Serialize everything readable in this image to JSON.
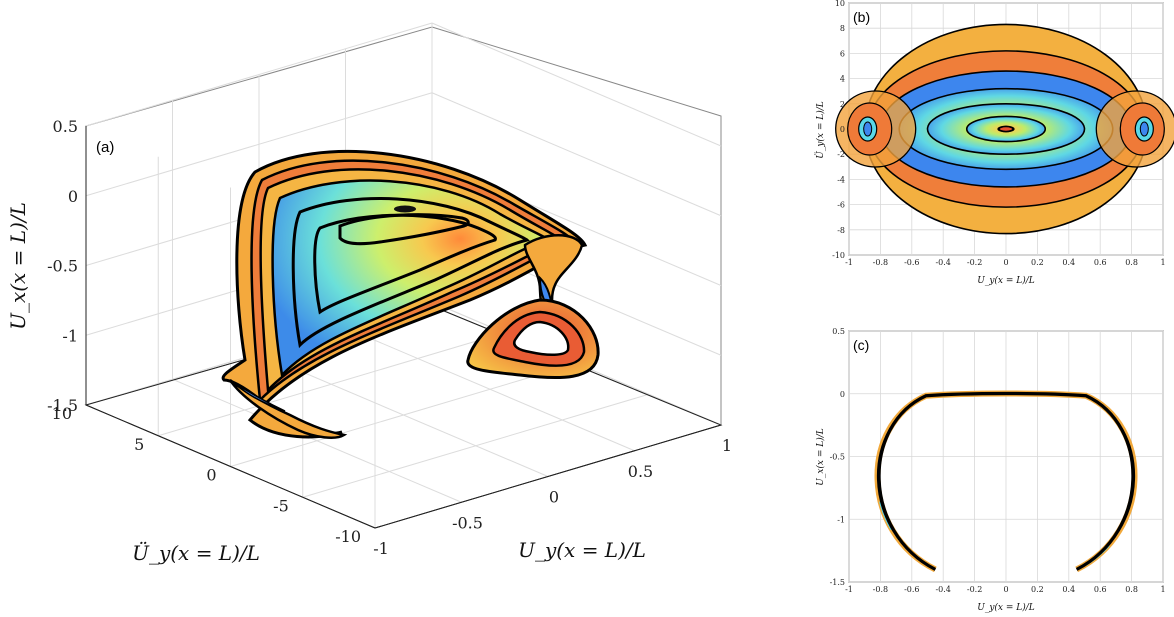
{
  "chart_data": [
    {
      "panel_label": "(a)",
      "type": "3d-surface-contour",
      "xlabel": "U_y(x = L)/L",
      "ylabel": "Ü_y(x = L)/L",
      "zlabel": "U_x(x = L)/L",
      "x_ticks": [
        "-1",
        "-0.5",
        "0",
        "0.5",
        "1"
      ],
      "y_ticks": [
        "-10",
        "-5",
        "0",
        "5",
        "10"
      ],
      "z_ticks": [
        "0.5",
        "0",
        "-0.5",
        "-1",
        "-1.5"
      ],
      "xlim": [
        -1,
        1
      ],
      "ylim": [
        -10,
        10
      ],
      "zlim": [
        -1.5,
        0.5
      ],
      "grid": true
    },
    {
      "panel_label": "(b)",
      "type": "contour",
      "xlabel": "U_y(x = L)/L",
      "ylabel": "Ü_y(x = L)/L",
      "x_ticks": [
        "-1",
        "-0.8",
        "-0.6",
        "-0.4",
        "-0.2",
        "0",
        "0.2",
        "0.4",
        "0.6",
        "0.8",
        "1"
      ],
      "y_ticks": [
        "10",
        "8",
        "6",
        "4",
        "2",
        "0",
        "-2",
        "-4",
        "-6",
        "-8",
        "-10"
      ],
      "xlim": [
        -1,
        1
      ],
      "ylim": [
        -10,
        10
      ],
      "orbits": [
        {
          "cx": 0,
          "cy": 0,
          "rx": 0.05,
          "ry": 0.2
        },
        {
          "cx": 0,
          "cy": 0,
          "rx": 0.25,
          "ry": 1.0
        },
        {
          "cx": 0,
          "cy": 0,
          "rx": 0.5,
          "ry": 2.0
        },
        {
          "cx": 0,
          "cy": 0,
          "rx": 0.68,
          "ry": 3.2
        },
        {
          "cx": 0,
          "cy": 0,
          "rx": 0.8,
          "ry": 4.6
        },
        {
          "cx": 0,
          "cy": 0,
          "rx": 0.88,
          "ry": 6.2
        },
        {
          "cx": 0,
          "cy": 0,
          "rx": 0.9,
          "ry": 8.3
        }
      ],
      "grid": true
    },
    {
      "panel_label": "(c)",
      "type": "line",
      "xlabel": "U_y(x = L)/L",
      "ylabel": "U_x(x = L)/L",
      "x_ticks": [
        "-1",
        "-0.8",
        "-0.6",
        "-0.4",
        "-0.2",
        "0",
        "0.2",
        "0.4",
        "0.6",
        "0.8",
        "1"
      ],
      "y_ticks": [
        "0.5",
        "0",
        "-0.5",
        "-1",
        "-1.5"
      ],
      "xlim": [
        -1,
        1
      ],
      "ylim": [
        -1.5,
        0.5
      ],
      "arc": {
        "x_end": 0.45,
        "y_top": 0,
        "y_end": -1.4
      },
      "grid": true
    }
  ],
  "colors": {
    "outer": "#f2a93b",
    "orange": "#ee7d3a",
    "red": "#e05a34",
    "yellow": "#f4dc55",
    "green": "#b9ea6a",
    "cyan": "#5ad8e8",
    "blue": "#3d86ee",
    "lightblue": "#9fdcf6",
    "line": "#000000"
  }
}
